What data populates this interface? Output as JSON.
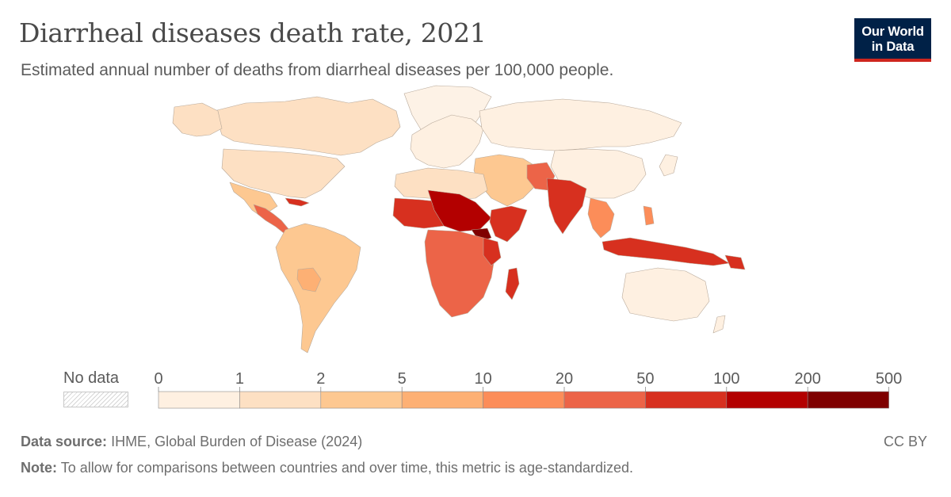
{
  "title": "Diarrheal diseases death rate, 2021",
  "subtitle": "Estimated annual number of deaths from diarrheal diseases per 100,000 people.",
  "logo": {
    "line1": "Our World",
    "line2": "in Data"
  },
  "legend": {
    "no_data_label": "No data",
    "ticks": [
      "0",
      "1",
      "2",
      "5",
      "10",
      "20",
      "50",
      "100",
      "200",
      "500"
    ],
    "colors": [
      "#fef0e1",
      "#fde0c3",
      "#fdc891",
      "#fdb074",
      "#fc8d59",
      "#ec6448",
      "#d7301f",
      "#b30000",
      "#7f0000"
    ]
  },
  "footer": {
    "source_label": "Data source:",
    "source_text": "IHME, Global Burden of Disease (2024)",
    "note_label": "Note:",
    "note_text": "To allow for comparisons between countries and over time, this metric is age-standardized.",
    "license": "CC BY"
  }
}
